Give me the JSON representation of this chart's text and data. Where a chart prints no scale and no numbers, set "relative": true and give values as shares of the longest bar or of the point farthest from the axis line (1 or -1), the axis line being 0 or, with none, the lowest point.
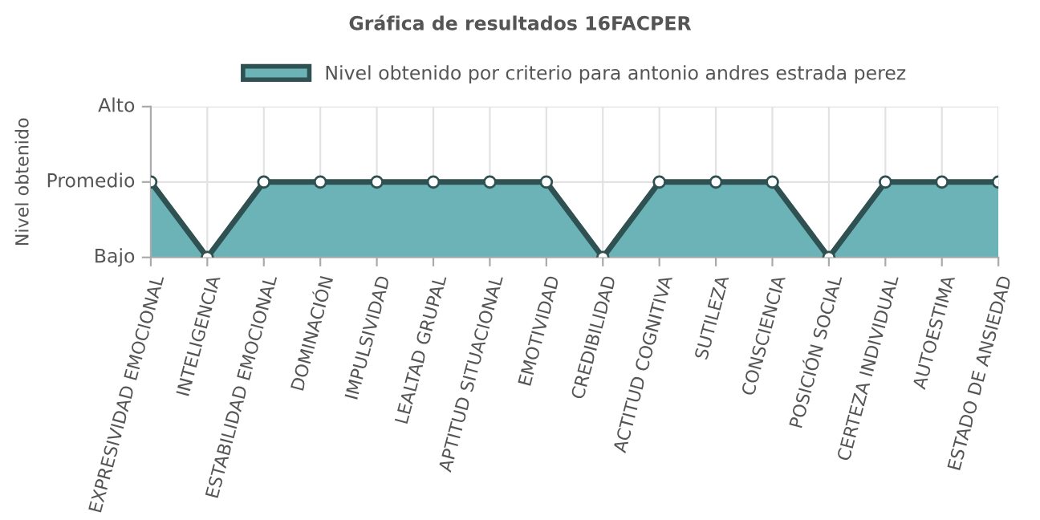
{
  "chart_data": {
    "type": "area",
    "title": "Gráfica de resultados 16FACPER",
    "ylabel": "Nivel obtenido",
    "categories": [
      "EXPRESIVIDAD EMOCIONAL",
      "INTELIGENCIA",
      "ESTABILIDAD EMOCIONAL",
      "DOMINACIÓN",
      "IMPULSIVIDAD",
      "LEALTAD GRUPAL",
      "APTITUD SITUACIONAL",
      "EMOTIVIDAD",
      "CREDIBILIDAD",
      "ACTITUD COGNITIVA",
      "SUTILEZA",
      "CONSCIENCIA",
      "POSICIÓN SOCIAL",
      "CERTEZA INDIVIDUAL",
      "AUTOESTIMA",
      "ESTADO DE ANSIEDAD"
    ],
    "series": [
      {
        "name": "Nivel obtenido por criterio para antonio andres estrada perez",
        "color": "#6bb3b6",
        "values": [
          1,
          0,
          1,
          1,
          1,
          1,
          1,
          1,
          0,
          1,
          1,
          1,
          0,
          1,
          1,
          1
        ]
      }
    ],
    "relative": true,
    "annotations": [
      "Alto",
      "Promedio",
      "Bajo"
    ],
    "grid": true,
    "legend": "top",
    "marker": "circle"
  }
}
